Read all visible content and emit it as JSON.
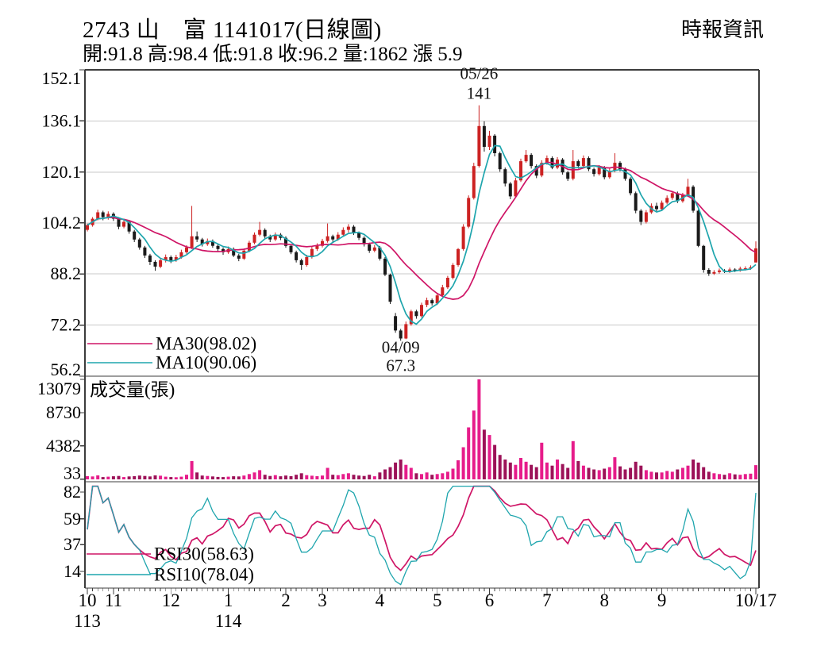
{
  "header": {
    "title": "2743 山　富 1141017(日線圖)",
    "ohlc_summary": "開:91.8 高:98.4 低:91.8 收:96.2 量:1862 漲 5.9",
    "brand": "時報資訊"
  },
  "colors": {
    "up": "#cc2222",
    "down": "#1a1a1a",
    "vol_up": "#e61c8a",
    "vol_down": "#9c1258",
    "ma30": "#cf1566",
    "ma10": "#1ea5ad",
    "grid": "#c9c9c9",
    "axis": "#444444"
  },
  "chart_data": {
    "type": "candlestick",
    "x_axis": {
      "months": [
        {
          "label": "10",
          "index": 0
        },
        {
          "label": "11",
          "index": 5
        },
        {
          "label": "12",
          "index": 16
        },
        {
          "label": "1",
          "index": 27
        },
        {
          "label": "2",
          "index": 38
        },
        {
          "label": "3",
          "index": 45
        },
        {
          "label": "4",
          "index": 56
        },
        {
          "label": "5",
          "index": 67
        },
        {
          "label": "6",
          "index": 77
        },
        {
          "label": "7",
          "index": 88
        },
        {
          "label": "8",
          "index": 99
        },
        {
          "label": "9",
          "index": 110
        },
        {
          "label": "10/17",
          "index": 128
        }
      ],
      "years": [
        {
          "label": "113",
          "index": 0
        },
        {
          "label": "114",
          "index": 27
        }
      ]
    },
    "panels": [
      {
        "name": "price",
        "ylim": [
          56.2,
          152.1
        ],
        "y_ticks": [
          152.1,
          136.1,
          120.1,
          104.2,
          88.2,
          72.2,
          56.2
        ],
        "ma_lines": [
          {
            "label": "MA30(98.02)",
            "window_sessions": 30,
            "window_samples": 15,
            "color": "#cf1566"
          },
          {
            "label": "MA10(90.06)",
            "window_sessions": 10,
            "window_samples": 5,
            "color": "#1ea5ad"
          }
        ],
        "annotations": [
          {
            "type": "peak",
            "index": 75,
            "date": "05/26",
            "value": "141"
          },
          {
            "type": "trough",
            "index": 60,
            "date": "04/09",
            "value": "67.3"
          }
        ],
        "ohlc": [
          [
            102,
            104,
            101.5,
            103.5
          ],
          [
            103.5,
            106,
            103,
            105.5
          ],
          [
            105.5,
            108.3,
            105,
            107.5
          ],
          [
            107.5,
            108,
            105,
            106
          ],
          [
            106,
            107.8,
            105.2,
            107
          ],
          [
            107,
            107.5,
            104.8,
            105.5
          ],
          [
            105.5,
            106,
            102.2,
            103
          ],
          [
            103,
            105.2,
            102.5,
            104.5
          ],
          [
            104.5,
            104.8,
            100.8,
            101.5
          ],
          [
            101.5,
            102,
            98.2,
            99
          ],
          [
            99,
            99.5,
            95.8,
            96.5
          ],
          [
            96.5,
            97,
            93.2,
            94
          ],
          [
            94,
            94.5,
            91,
            92
          ],
          [
            92,
            92.5,
            89.2,
            90.5
          ],
          [
            90.5,
            93.2,
            90,
            92.5
          ],
          [
            92.5,
            94.3,
            91.8,
            93.5
          ],
          [
            93.5,
            94,
            91.6,
            92.5
          ],
          [
            92.5,
            94.2,
            92,
            93.5
          ],
          [
            93.5,
            95.8,
            93,
            95
          ],
          [
            95,
            97.2,
            94.5,
            96.5
          ],
          [
            96.5,
            109.5,
            96,
            100
          ],
          [
            100,
            101.5,
            98.2,
            99
          ],
          [
            99,
            99.5,
            96.8,
            97.5
          ],
          [
            97.5,
            99.3,
            97,
            98.5
          ],
          [
            98.5,
            99,
            96.4,
            97
          ],
          [
            97,
            97.5,
            95.3,
            96
          ],
          [
            96,
            96.5,
            94.2,
            95
          ],
          [
            95,
            96.8,
            94.5,
            96
          ],
          [
            96,
            96.5,
            93.5,
            94
          ],
          [
            94,
            94.5,
            92.2,
            93
          ],
          [
            93,
            96.2,
            92.6,
            95.5
          ],
          [
            95.5,
            98.6,
            95,
            98
          ],
          [
            98,
            101.2,
            97.5,
            100.5
          ],
          [
            100.5,
            104.5,
            100,
            102
          ],
          [
            102,
            102.5,
            99.3,
            100
          ],
          [
            100,
            100.5,
            98.2,
            99
          ],
          [
            99,
            101.2,
            98.5,
            100.5
          ],
          [
            100.5,
            101,
            98.8,
            99.5
          ],
          [
            99.5,
            100,
            96.4,
            97
          ],
          [
            97,
            97.5,
            94.4,
            95
          ],
          [
            95,
            95.5,
            91.8,
            92.5
          ],
          [
            92.5,
            93,
            89.5,
            91
          ],
          [
            91,
            94.2,
            90.5,
            93.5
          ],
          [
            93.5,
            96.8,
            93,
            96
          ],
          [
            96,
            97.8,
            95.4,
            97
          ],
          [
            97,
            99.2,
            96.5,
            98.5
          ],
          [
            98.5,
            104,
            98,
            100
          ],
          [
            100,
            100.5,
            98.3,
            99
          ],
          [
            99,
            101.3,
            98.6,
            100.5
          ],
          [
            100.5,
            102.8,
            100,
            102
          ],
          [
            102,
            103.8,
            101.2,
            103
          ],
          [
            103,
            103.5,
            100.4,
            101
          ],
          [
            101,
            101.5,
            98.8,
            99.5
          ],
          [
            99.5,
            100,
            96.8,
            97.5
          ],
          [
            97.5,
            98,
            94.8,
            95.5
          ],
          [
            95.5,
            97.3,
            95,
            96.5
          ],
          [
            96.5,
            97,
            92.4,
            93
          ],
          [
            93,
            93.5,
            87.5,
            88
          ],
          [
            88,
            88.3,
            78.8,
            79.5
          ],
          [
            75,
            76,
            69.8,
            70.5
          ],
          [
            70.5,
            71,
            67.3,
            68
          ],
          [
            68,
            73.3,
            67.8,
            72.5
          ],
          [
            72.5,
            77,
            72,
            76.5
          ],
          [
            76.5,
            77,
            74.2,
            75
          ],
          [
            75,
            79.2,
            74.6,
            78.5
          ],
          [
            78.5,
            80.8,
            77.8,
            80
          ],
          [
            80,
            80.5,
            78.3,
            79
          ],
          [
            79,
            82.2,
            78.5,
            81.5
          ],
          [
            81.5,
            84.8,
            81,
            84
          ],
          [
            84,
            87.6,
            83.5,
            87
          ],
          [
            87,
            91.6,
            86.5,
            91
          ],
          [
            91,
            96.3,
            90.5,
            96
          ],
          [
            96,
            103.8,
            95.5,
            103
          ],
          [
            103,
            112.8,
            102.5,
            112
          ],
          [
            112,
            123,
            111.5,
            122
          ],
          [
            122,
            141,
            121.5,
            134.5
          ],
          [
            134.5,
            136,
            126.5,
            128
          ],
          [
            128,
            133,
            127,
            131.5
          ],
          [
            131.5,
            132,
            125,
            126
          ],
          [
            126,
            126.5,
            120.2,
            121
          ],
          [
            121,
            121.5,
            115.6,
            116.5
          ],
          [
            116.5,
            117,
            111.6,
            112.5
          ],
          [
            112.5,
            118.3,
            112,
            117.5
          ],
          [
            117.5,
            124.3,
            117,
            123.5
          ],
          [
            123.5,
            127,
            123,
            125.5
          ],
          [
            125.5,
            126,
            121.2,
            122
          ],
          [
            122,
            122.5,
            118.2,
            119
          ],
          [
            119,
            123.8,
            118.5,
            123
          ],
          [
            123,
            125.3,
            122.4,
            124.5
          ],
          [
            124.5,
            125,
            121,
            121.5
          ],
          [
            121.5,
            124.8,
            121,
            124
          ],
          [
            124,
            124.5,
            119.3,
            120
          ],
          [
            120,
            120.5,
            117.3,
            118
          ],
          [
            118,
            127,
            117.5,
            123.5
          ],
          [
            123.5,
            124,
            121.2,
            122
          ],
          [
            122,
            125.3,
            121.5,
            124.5
          ],
          [
            124.5,
            125,
            120.4,
            121
          ],
          [
            121,
            121.5,
            118.7,
            119.5
          ],
          [
            119.5,
            122.3,
            119,
            121.5
          ],
          [
            121.5,
            122,
            117.8,
            118.5
          ],
          [
            118.5,
            121.3,
            118,
            120.5
          ],
          [
            120.5,
            126,
            120,
            123
          ],
          [
            123,
            123.5,
            120.3,
            121
          ],
          [
            121,
            121.5,
            117.4,
            118
          ],
          [
            118,
            118.5,
            112.8,
            113.5
          ],
          [
            113.5,
            114,
            107.2,
            108
          ],
          [
            108,
            108.5,
            103.5,
            104.5
          ],
          [
            104.5,
            108.2,
            104,
            107.5
          ],
          [
            107.5,
            110.3,
            107,
            109.5
          ],
          [
            109.5,
            110.5,
            107.8,
            108.5
          ],
          [
            108.5,
            111.2,
            108,
            110.5
          ],
          [
            110.5,
            112.8,
            110,
            112
          ],
          [
            112,
            114.2,
            111.4,
            113.5
          ],
          [
            113.5,
            114,
            110.4,
            111
          ],
          [
            111,
            113.6,
            110.5,
            113
          ],
          [
            113,
            118,
            112.6,
            115.5
          ],
          [
            115.5,
            116,
            107.4,
            108
          ],
          [
            108,
            108.4,
            96.6,
            97
          ],
          [
            97,
            97.3,
            88.6,
            89.5
          ],
          [
            89.5,
            90,
            87.6,
            88.3
          ],
          [
            88.3,
            89.4,
            87.9,
            88.8
          ],
          [
            88.8,
            89.9,
            88.3,
            89.3
          ],
          [
            89.3,
            89.7,
            88.5,
            88.9
          ],
          [
            88.9,
            90.2,
            88.5,
            89.6
          ],
          [
            89.6,
            90,
            88.8,
            89.2
          ],
          [
            89.2,
            90.5,
            88.9,
            89.9
          ],
          [
            89.9,
            90.6,
            89.3,
            90
          ],
          [
            90,
            90.9,
            89.5,
            90.3
          ],
          [
            91.8,
            98.4,
            91.8,
            96.2
          ]
        ]
      },
      {
        "name": "volume",
        "label": "成交量(張)",
        "y_ticks": [
          13079,
          8730,
          4382,
          33
        ],
        "max": 13079,
        "values": [
          420,
          380,
          520,
          300,
          350,
          400,
          450,
          300,
          380,
          420,
          500,
          450,
          380,
          520,
          480,
          350,
          300,
          280,
          350,
          600,
          2400,
          900,
          500,
          450,
          380,
          320,
          300,
          350,
          400,
          380,
          500,
          700,
          900,
          1200,
          600,
          450,
          550,
          400,
          500,
          420,
          600,
          800,
          550,
          480,
          420,
          500,
          1500,
          600,
          550,
          700,
          800,
          600,
          500,
          450,
          600,
          400,
          900,
          1300,
          1600,
          2200,
          2600,
          1900,
          1500,
          800,
          700,
          900,
          600,
          700,
          800,
          1000,
          1400,
          2500,
          4200,
          6800,
          9000,
          13079,
          6500,
          5800,
          4500,
          3200,
          2600,
          2200,
          1900,
          2800,
          2300,
          1900,
          1600,
          4800,
          2200,
          1800,
          2600,
          2000,
          1500,
          5000,
          2400,
          1800,
          1500,
          1300,
          1200,
          1400,
          1600,
          2900,
          1700,
          1300,
          1500,
          2300,
          1800,
          1200,
          1000,
          900,
          900,
          1100,
          1000,
          1300,
          1500,
          1800,
          2600,
          2200,
          1600,
          1000,
          800,
          700,
          600,
          800,
          650,
          600,
          700,
          750,
          1862
        ]
      },
      {
        "name": "rsi",
        "y_ticks": [
          82,
          59,
          37,
          14
        ],
        "series": [
          {
            "label": "RSI30(58.63)",
            "window_sessions": 30,
            "window_samples": 15,
            "color": "#cf1566"
          },
          {
            "label": "RSI10(78.04)",
            "window_sessions": 10,
            "window_samples": 10,
            "color": "#1ea5ad"
          }
        ]
      }
    ]
  }
}
